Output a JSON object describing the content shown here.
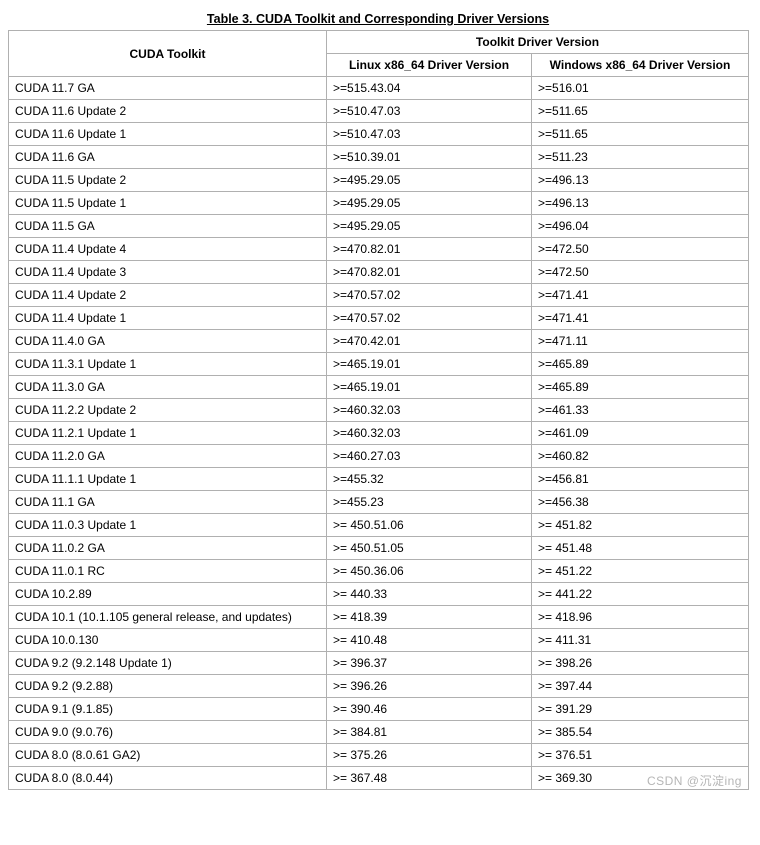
{
  "table": {
    "caption": "Table 3. CUDA Toolkit and Corresponding Driver Versions",
    "header_toolkit": "CUDA Toolkit",
    "header_driver_group": "Toolkit Driver Version",
    "header_linux": "Linux x86_64 Driver Version",
    "header_windows": "Windows x86_64 Driver Version",
    "rows": [
      {
        "toolkit": "CUDA 11.7 GA",
        "linux": ">=515.43.04",
        "windows": ">=516.01"
      },
      {
        "toolkit": "CUDA 11.6 Update 2",
        "linux": ">=510.47.03",
        "windows": ">=511.65"
      },
      {
        "toolkit": "CUDA 11.6 Update 1",
        "linux": ">=510.47.03",
        "windows": ">=511.65"
      },
      {
        "toolkit": "CUDA 11.6 GA",
        "linux": ">=510.39.01",
        "windows": ">=511.23"
      },
      {
        "toolkit": "CUDA 11.5 Update 2",
        "linux": ">=495.29.05",
        "windows": ">=496.13"
      },
      {
        "toolkit": "CUDA 11.5 Update 1",
        "linux": ">=495.29.05",
        "windows": ">=496.13"
      },
      {
        "toolkit": "CUDA 11.5 GA",
        "linux": ">=495.29.05",
        "windows": ">=496.04"
      },
      {
        "toolkit": "CUDA 11.4 Update 4",
        "linux": ">=470.82.01",
        "windows": ">=472.50"
      },
      {
        "toolkit": "CUDA 11.4 Update 3",
        "linux": ">=470.82.01",
        "windows": ">=472.50"
      },
      {
        "toolkit": "CUDA 11.4 Update 2",
        "linux": ">=470.57.02",
        "windows": ">=471.41"
      },
      {
        "toolkit": "CUDA 11.4 Update 1",
        "linux": ">=470.57.02",
        "windows": ">=471.41"
      },
      {
        "toolkit": "CUDA 11.4.0 GA",
        "linux": ">=470.42.01",
        "windows": ">=471.11"
      },
      {
        "toolkit": "CUDA 11.3.1 Update 1",
        "linux": ">=465.19.01",
        "windows": ">=465.89"
      },
      {
        "toolkit": "CUDA 11.3.0 GA",
        "linux": ">=465.19.01",
        "windows": ">=465.89"
      },
      {
        "toolkit": "CUDA 11.2.2 Update 2",
        "linux": ">=460.32.03",
        "windows": ">=461.33"
      },
      {
        "toolkit": "CUDA 11.2.1 Update 1",
        "linux": ">=460.32.03",
        "windows": ">=461.09"
      },
      {
        "toolkit": "CUDA 11.2.0 GA",
        "linux": ">=460.27.03",
        "windows": ">=460.82"
      },
      {
        "toolkit": "CUDA 11.1.1 Update 1",
        "linux": ">=455.32",
        "windows": ">=456.81"
      },
      {
        "toolkit": "CUDA 11.1 GA",
        "linux": ">=455.23",
        "windows": ">=456.38"
      },
      {
        "toolkit": "CUDA 11.0.3 Update 1",
        "linux": ">= 450.51.06",
        "windows": ">= 451.82"
      },
      {
        "toolkit": "CUDA 11.0.2 GA",
        "linux": ">= 450.51.05",
        "windows": ">= 451.48"
      },
      {
        "toolkit": "CUDA 11.0.1 RC",
        "linux": ">= 450.36.06",
        "windows": ">= 451.22"
      },
      {
        "toolkit": "CUDA 10.2.89",
        "linux": ">= 440.33",
        "windows": ">= 441.22"
      },
      {
        "toolkit": "CUDA 10.1 (10.1.105 general release, and updates)",
        "linux": ">= 418.39",
        "windows": ">= 418.96"
      },
      {
        "toolkit": "CUDA 10.0.130",
        "linux": ">= 410.48",
        "windows": ">= 411.31"
      },
      {
        "toolkit": "CUDA 9.2 (9.2.148 Update 1)",
        "linux": ">= 396.37",
        "windows": ">= 398.26"
      },
      {
        "toolkit": "CUDA 9.2 (9.2.88)",
        "linux": ">= 396.26",
        "windows": ">= 397.44"
      },
      {
        "toolkit": "CUDA 9.1 (9.1.85)",
        "linux": ">= 390.46",
        "windows": ">= 391.29"
      },
      {
        "toolkit": "CUDA 9.0 (9.0.76)",
        "linux": ">= 384.81",
        "windows": ">= 385.54"
      },
      {
        "toolkit": "CUDA 8.0 (8.0.61 GA2)",
        "linux": ">= 375.26",
        "windows": ">= 376.51"
      },
      {
        "toolkit": "CUDA 8.0 (8.0.44)",
        "linux": ">= 367.48",
        "windows": ">= 369.30"
      }
    ]
  },
  "watermark": "CSDN @沉淀ing"
}
